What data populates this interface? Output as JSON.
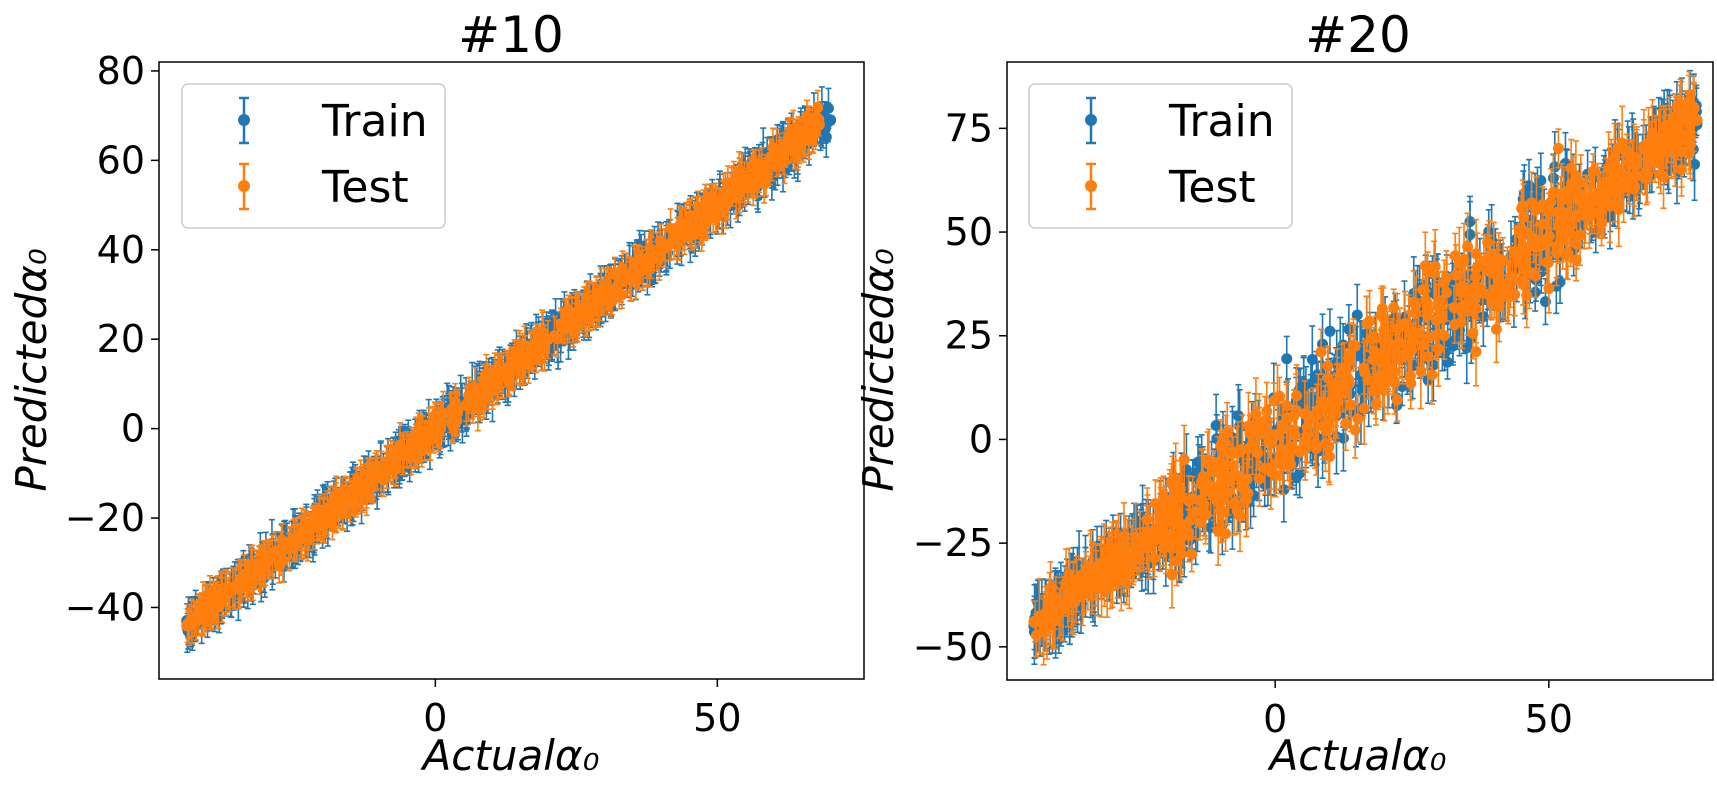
{
  "colors": {
    "train": "#1f77b4",
    "test": "#ff7f0e"
  },
  "chart_data": [
    {
      "type": "scatter",
      "title": "#10",
      "xlabel": "Actualα₀",
      "ylabel": "Predictedα₀",
      "xlim": [
        -49,
        76
      ],
      "ylim": [
        -56,
        82
      ],
      "xticks": [
        0,
        50
      ],
      "yticks": [
        -40,
        -20,
        0,
        20,
        40,
        60,
        80
      ],
      "grid": false,
      "legend": {
        "position": "upper-left",
        "entries": [
          "Train",
          "Test"
        ]
      },
      "series": [
        {
          "name": "Train",
          "color": "#1f77b4",
          "x_range": [
            -44,
            70
          ],
          "slope": 1.0,
          "intercept": 0,
          "spread": 3.0,
          "err": [
            3,
            6
          ],
          "points": [
            [
              -44,
              -43
            ],
            [
              -30,
              -30
            ],
            [
              -15,
              -14
            ],
            [
              0,
              1
            ],
            [
              15,
              14
            ],
            [
              30,
              31
            ],
            [
              45,
              44
            ],
            [
              60,
              60
            ],
            [
              70,
              69
            ]
          ]
        },
        {
          "name": "Test",
          "color": "#ff7f0e",
          "x_range": [
            -44,
            68
          ],
          "slope": 1.0,
          "intercept": 0,
          "spread": 2.8,
          "err": [
            3,
            5
          ],
          "points": [
            [
              -44,
              -44
            ],
            [
              -30,
              -29
            ],
            [
              -15,
              -15
            ],
            [
              0,
              0
            ],
            [
              15,
              15
            ],
            [
              30,
              30
            ],
            [
              45,
              45
            ],
            [
              60,
              59
            ],
            [
              68,
              68
            ]
          ]
        }
      ]
    },
    {
      "type": "scatter",
      "title": "#20",
      "xlabel": "Actualα₀",
      "ylabel": "Predictedα₀",
      "xlim": [
        -49,
        80
      ],
      "ylim": [
        -58,
        91
      ],
      "xticks": [
        0,
        50
      ],
      "yticks": [
        -50,
        -25,
        0,
        25,
        50,
        75
      ],
      "grid": false,
      "legend": {
        "position": "upper-left",
        "entries": [
          "Train",
          "Test"
        ]
      },
      "series": [
        {
          "name": "Train",
          "color": "#1f77b4",
          "x_range": [
            -44,
            77
          ],
          "slope": 1.0,
          "intercept": 0,
          "spread": 7.5,
          "err": [
            4,
            9
          ],
          "points": [
            [
              -44,
              -45
            ],
            [
              -25,
              -22
            ],
            [
              -10,
              -8
            ],
            [
              0,
              2
            ],
            [
              10,
              12
            ],
            [
              25,
              24
            ],
            [
              40,
              38
            ],
            [
              55,
              56
            ],
            [
              70,
              70
            ],
            [
              77,
              76
            ]
          ]
        },
        {
          "name": "Test",
          "color": "#ff7f0e",
          "x_range": [
            -44,
            77
          ],
          "slope": 1.0,
          "intercept": 0,
          "spread": 7.0,
          "err": [
            4,
            9
          ],
          "points": [
            [
              -44,
              -44
            ],
            [
              -25,
              -26
            ],
            [
              -10,
              -11
            ],
            [
              0,
              1
            ],
            [
              10,
              9
            ],
            [
              25,
              26
            ],
            [
              40,
              41
            ],
            [
              55,
              54
            ],
            [
              70,
              69
            ],
            [
              77,
              77
            ]
          ]
        }
      ]
    }
  ]
}
